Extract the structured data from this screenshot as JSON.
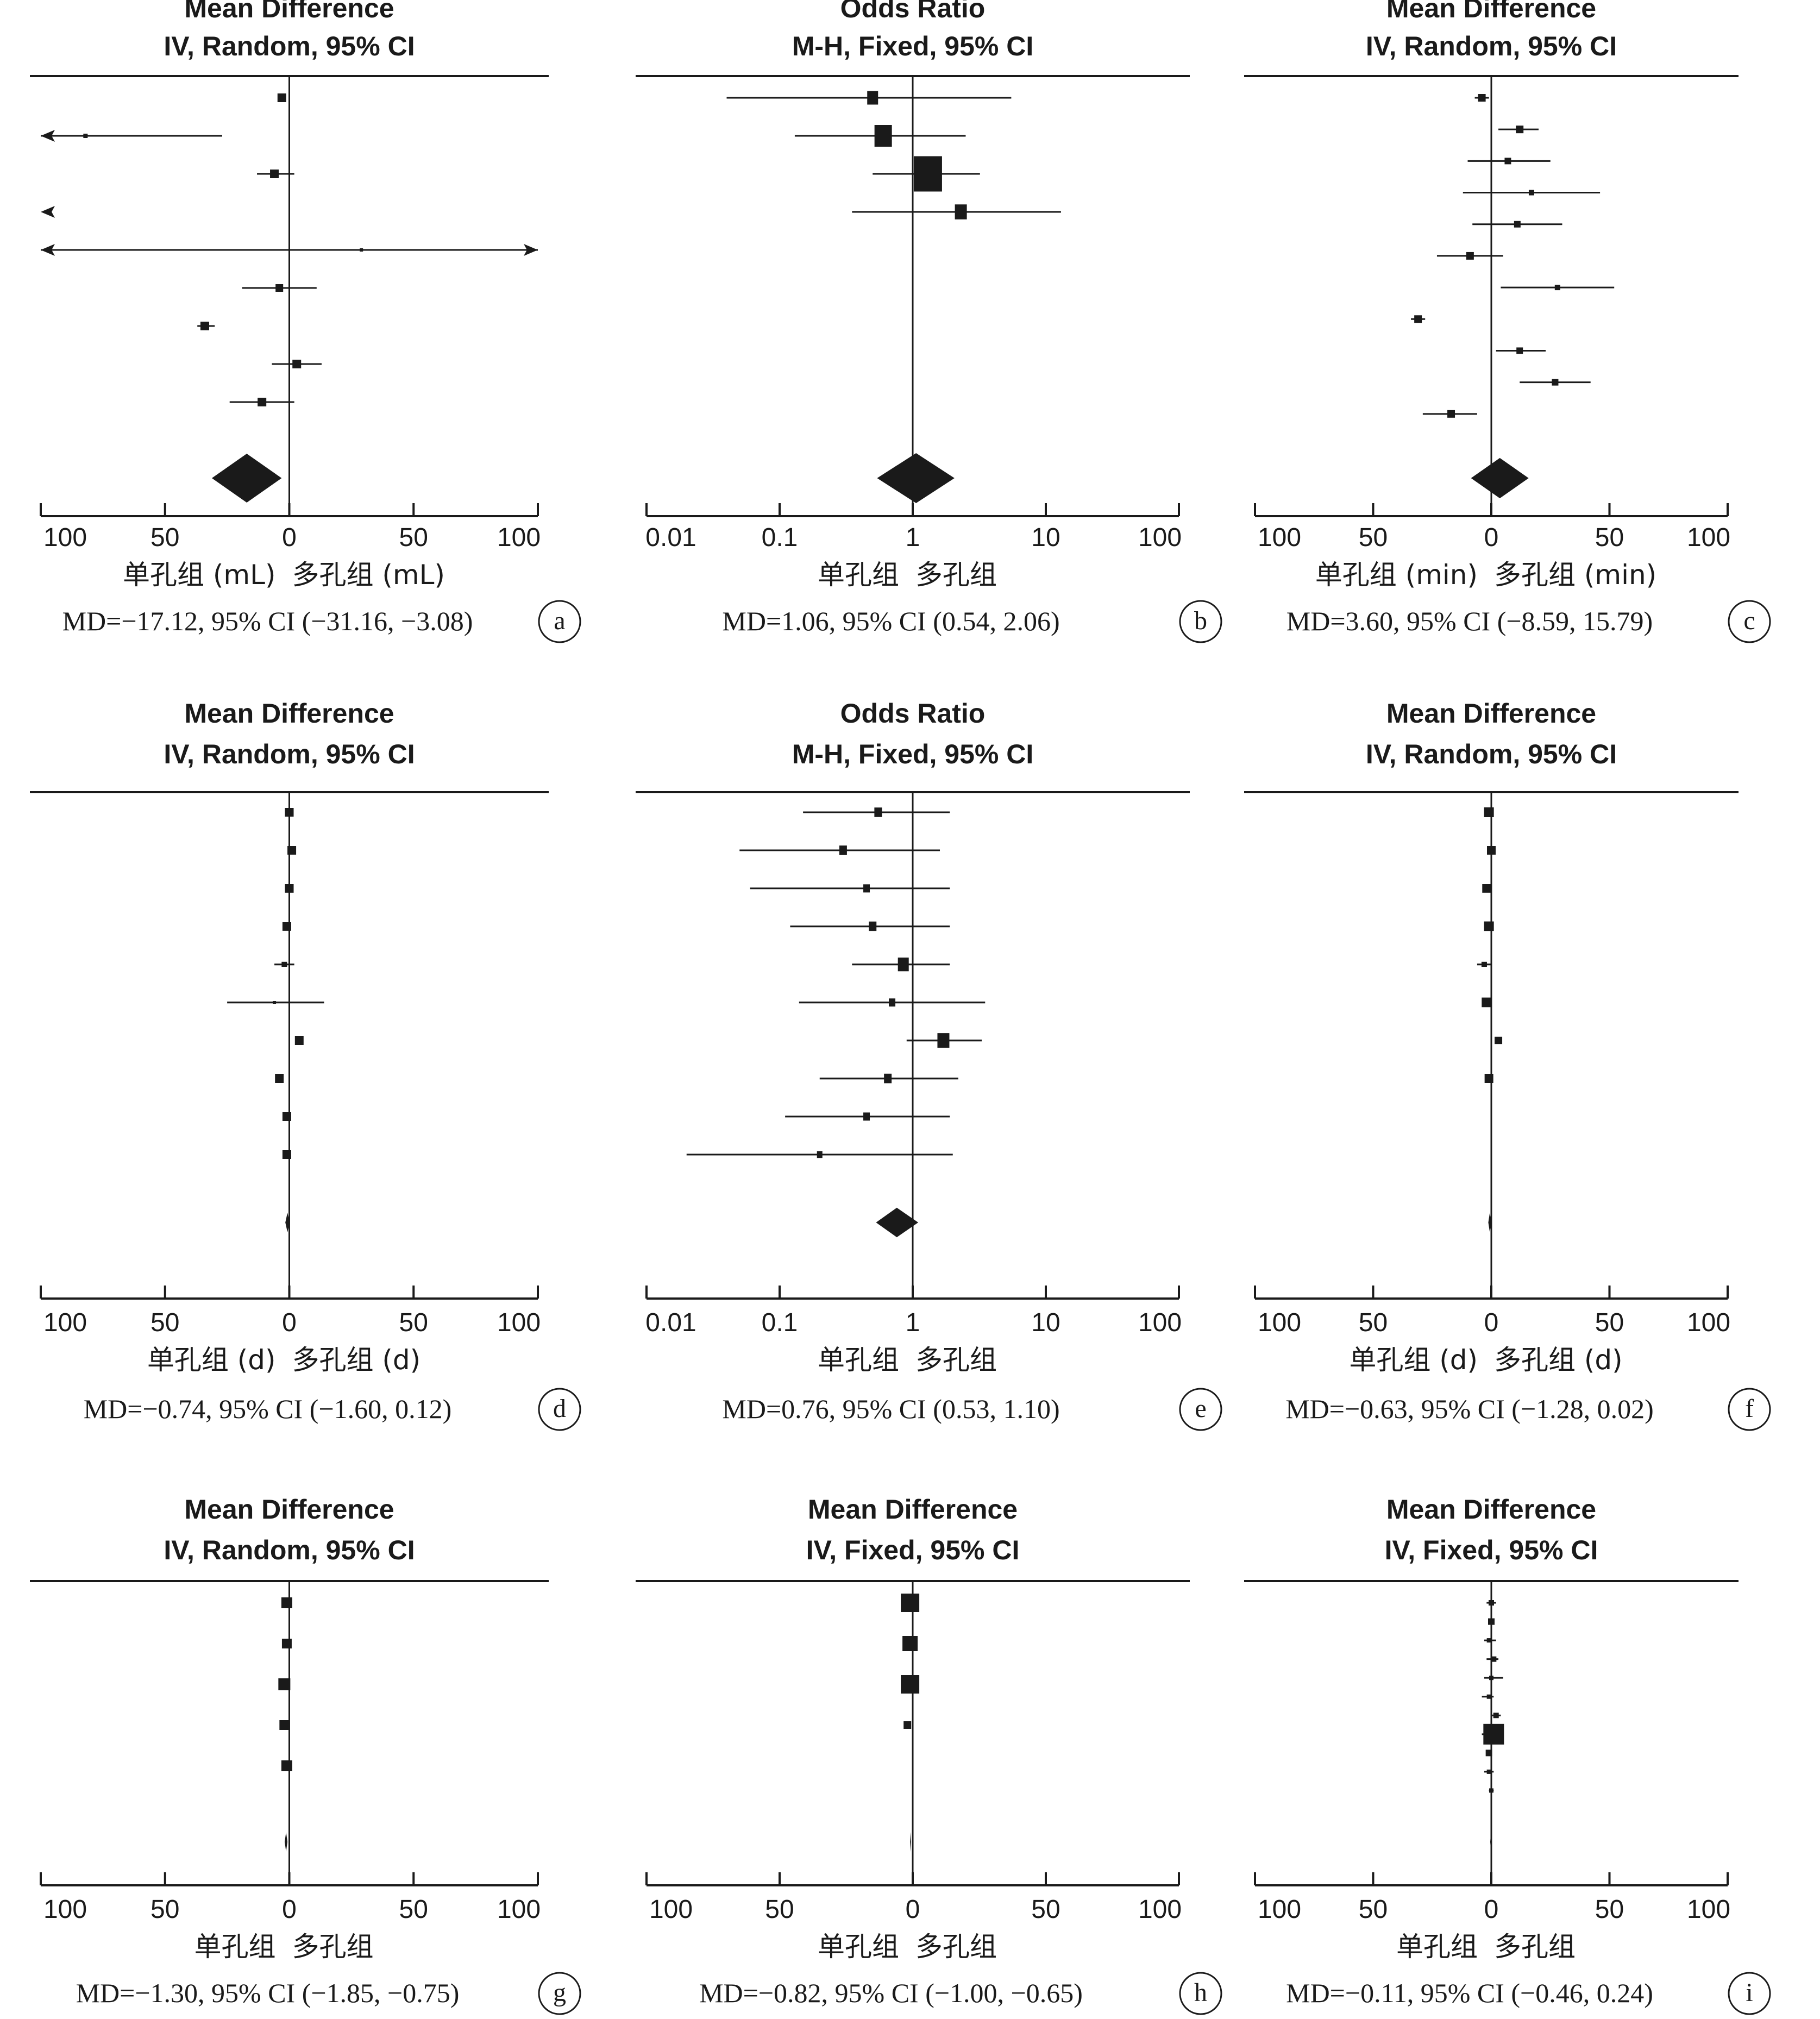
{
  "chart_data": [
    {
      "type": "forest",
      "panel_label": "a",
      "header": [
        "Mean Difference",
        "IV, Random, 95% CI"
      ],
      "scale": "linear",
      "axis_ticks": [
        "100",
        "50",
        "0",
        "50",
        "100"
      ],
      "xlim": [
        -100,
        100
      ],
      "xlabel_left": "单孔组 (mL)",
      "xlabel_right": "多孔组 (mL)",
      "summary_text": "MD=−17.12, 95% CI (−31.16, −3.08)",
      "studies": [
        {
          "est": -3,
          "lo": -3,
          "hi": -3,
          "size": 16
        },
        {
          "est": -82,
          "lo": -100,
          "hi": -27,
          "arrow_left": true,
          "size": 8
        },
        {
          "est": -6,
          "lo": -13,
          "hi": 2,
          "size": 16
        },
        {
          "est": -100,
          "lo": -100,
          "hi": -100,
          "arrow_left": true,
          "size": 0
        },
        {
          "est": 29,
          "lo": -100,
          "hi": 100,
          "arrow_left": true,
          "arrow_right": true,
          "size": 6
        },
        {
          "est": -4,
          "lo": -19,
          "hi": 11,
          "size": 14
        },
        {
          "est": -34,
          "lo": -37,
          "hi": -30,
          "size": 16
        },
        {
          "est": 3,
          "lo": -7,
          "hi": 13,
          "size": 16
        },
        {
          "est": -11,
          "lo": -24,
          "hi": 2,
          "size": 16
        }
      ],
      "pooled": {
        "est": -17.12,
        "lo": -31.16,
        "hi": -3.08
      }
    },
    {
      "type": "forest",
      "panel_label": "b",
      "header": [
        "Odds Ratio",
        "M-H, Fixed, 95% CI"
      ],
      "scale": "log",
      "axis_ticks": [
        "0.01",
        "0.1",
        "1",
        "10",
        "100"
      ],
      "xlim": [
        0.01,
        100
      ],
      "xlabel_left": "单孔组",
      "xlabel_right": "多孔组",
      "summary_text": "MD=1.06, 95% CI (0.54, 2.06)",
      "studies": [
        {
          "est": 0.5,
          "lo": 0.04,
          "hi": 5.5,
          "size": 20
        },
        {
          "est": 0.6,
          "lo": 0.13,
          "hi": 2.5,
          "size": 32
        },
        {
          "est": 1.3,
          "lo": 0.5,
          "hi": 3.2,
          "size": 52
        },
        {
          "est": 2.3,
          "lo": 0.35,
          "hi": 13,
          "size": 22
        }
      ],
      "pooled": {
        "est": 1.06,
        "lo": 0.54,
        "hi": 2.06
      }
    },
    {
      "type": "forest",
      "panel_label": "c",
      "header": [
        "Mean Difference",
        "IV, Random, 95% CI"
      ],
      "scale": "linear",
      "axis_ticks": [
        "100",
        "50",
        "0",
        "50",
        "100"
      ],
      "xlim": [
        -100,
        100
      ],
      "xlabel_left": "单孔组 (min)",
      "xlabel_right": "多孔组 (min)",
      "summary_text": "MD=3.60, 95% CI (−8.59, 15.79)",
      "studies": [
        {
          "est": -4,
          "lo": -7,
          "hi": -1,
          "size": 14
        },
        {
          "est": 12,
          "lo": 3,
          "hi": 20,
          "size": 14
        },
        {
          "est": 7,
          "lo": -10,
          "hi": 25,
          "size": 12
        },
        {
          "est": 17,
          "lo": -12,
          "hi": 46,
          "size": 10
        },
        {
          "est": 11,
          "lo": -8,
          "hi": 30,
          "size": 12
        },
        {
          "est": -9,
          "lo": -23,
          "hi": 5,
          "size": 14
        },
        {
          "est": 28,
          "lo": 4,
          "hi": 52,
          "size": 10
        },
        {
          "est": -31,
          "lo": -34,
          "hi": -28,
          "size": 14
        },
        {
          "est": 12,
          "lo": 2,
          "hi": 23,
          "size": 12
        },
        {
          "est": 27,
          "lo": 12,
          "hi": 42,
          "size": 12
        },
        {
          "est": -17,
          "lo": -29,
          "hi": -6,
          "size": 14
        }
      ],
      "pooled": {
        "est": 3.6,
        "lo": -8.59,
        "hi": 15.79
      }
    },
    {
      "type": "forest",
      "panel_label": "d",
      "header": [
        "Mean Difference",
        "IV, Random, 95% CI"
      ],
      "scale": "linear",
      "axis_ticks": [
        "100",
        "50",
        "0",
        "50",
        "100"
      ],
      "xlim": [
        -100,
        100
      ],
      "xlabel_left": "单孔组 (d)",
      "xlabel_right": "多孔组 (d)",
      "summary_text": "MD=−0.74, 95% CI (−1.60, 0.12)",
      "studies": [
        {
          "est": 0,
          "lo": -1,
          "hi": 1,
          "size": 16
        },
        {
          "est": 1,
          "lo": 0,
          "hi": 2,
          "size": 16
        },
        {
          "est": 0,
          "lo": -1,
          "hi": 1,
          "size": 16
        },
        {
          "est": -1,
          "lo": -2,
          "hi": 0,
          "size": 16
        },
        {
          "est": -2,
          "lo": -6,
          "hi": 2,
          "size": 10
        },
        {
          "est": -6,
          "lo": -25,
          "hi": 14,
          "size": 6
        },
        {
          "est": 4,
          "lo": 3,
          "hi": 5,
          "size": 16
        },
        {
          "est": -4,
          "lo": -5,
          "hi": -3,
          "size": 16
        },
        {
          "est": -1,
          "lo": -2,
          "hi": 0,
          "size": 16
        },
        {
          "est": -1,
          "lo": -2,
          "hi": 0,
          "size": 16
        }
      ],
      "pooled": {
        "est": -0.74,
        "lo": -1.6,
        "hi": 0.12
      }
    },
    {
      "type": "forest",
      "panel_label": "e",
      "header": [
        "Odds Ratio",
        "M-H, Fixed, 95% CI"
      ],
      "scale": "log",
      "axis_ticks": [
        "0.01",
        "0.1",
        "1",
        "10",
        "100"
      ],
      "xlim": [
        0.01,
        100
      ],
      "xlabel_left": "单孔组",
      "xlabel_right": "多孔组",
      "summary_text": "MD=0.76, 95% CI (0.53, 1.10)",
      "studies": [
        {
          "est": 0.55,
          "lo": 0.15,
          "hi": 1.9,
          "size": 14
        },
        {
          "est": 0.3,
          "lo": 0.05,
          "hi": 1.6,
          "size": 14
        },
        {
          "est": 0.45,
          "lo": 0.06,
          "hi": 1.9,
          "size": 12
        },
        {
          "est": 0.5,
          "lo": 0.12,
          "hi": 1.9,
          "size": 14
        },
        {
          "est": 0.85,
          "lo": 0.35,
          "hi": 1.9,
          "size": 20
        },
        {
          "est": 0.7,
          "lo": 0.14,
          "hi": 3.5,
          "size": 12
        },
        {
          "est": 1.7,
          "lo": 0.9,
          "hi": 3.3,
          "size": 22
        },
        {
          "est": 0.65,
          "lo": 0.2,
          "hi": 2.2,
          "size": 14
        },
        {
          "est": 0.45,
          "lo": 0.11,
          "hi": 1.9,
          "size": 12
        },
        {
          "est": 0.2,
          "lo": 0.02,
          "hi": 2.0,
          "size": 10
        }
      ],
      "pooled": {
        "est": 0.76,
        "lo": 0.53,
        "hi": 1.1
      }
    },
    {
      "type": "forest",
      "panel_label": "f",
      "header": [
        "Mean Difference",
        "IV, Random, 95% CI"
      ],
      "scale": "linear",
      "axis_ticks": [
        "100",
        "50",
        "0",
        "50",
        "100"
      ],
      "xlim": [
        -100,
        100
      ],
      "xlabel_left": "单孔组 (d)",
      "xlabel_right": "多孔组 (d)",
      "summary_text": "MD=−0.63, 95% CI (−1.28, 0.02)",
      "studies": [
        {
          "est": -1,
          "lo": -2,
          "hi": 0,
          "size": 18
        },
        {
          "est": 0,
          "lo": -1,
          "hi": 1,
          "size": 16
        },
        {
          "est": -2,
          "lo": -3,
          "hi": -1,
          "size": 16
        },
        {
          "est": -1,
          "lo": -2,
          "hi": 0,
          "size": 18
        },
        {
          "est": -3,
          "lo": -6,
          "hi": 0,
          "size": 10
        },
        {
          "est": -2,
          "lo": -3,
          "hi": -1,
          "size": 18
        },
        {
          "est": 3,
          "lo": 2,
          "hi": 4,
          "size": 14
        },
        {
          "est": -1,
          "lo": -2,
          "hi": 0,
          "size": 16
        }
      ],
      "pooled": {
        "est": -0.63,
        "lo": -1.28,
        "hi": 0.02
      }
    },
    {
      "type": "forest",
      "panel_label": "g",
      "header": [
        "Mean Difference",
        "IV, Random, 95% CI"
      ],
      "scale": "linear",
      "axis_ticks": [
        "100",
        "50",
        "0",
        "50",
        "100"
      ],
      "xlim": [
        -100,
        100
      ],
      "xlabel_left": "单孔组",
      "xlabel_right": "多孔组",
      "summary_text": "MD=−1.30, 95% CI (−1.85, −0.75)",
      "studies": [
        {
          "est": -1,
          "lo": -2,
          "hi": 0,
          "size": 20
        },
        {
          "est": -1,
          "lo": -2,
          "hi": 0,
          "size": 18
        },
        {
          "est": -2,
          "lo": -3,
          "hi": -1,
          "size": 22
        },
        {
          "est": -2,
          "lo": -3,
          "hi": -1,
          "size": 18
        },
        {
          "est": -1,
          "lo": -2,
          "hi": 0,
          "size": 20
        }
      ],
      "pooled": {
        "est": -1.3,
        "lo": -1.85,
        "hi": -0.75
      }
    },
    {
      "type": "forest",
      "panel_label": "h",
      "header": [
        "Mean Difference",
        "IV, Fixed, 95% CI"
      ],
      "scale": "linear",
      "axis_ticks": [
        "100",
        "50",
        "0",
        "50",
        "100"
      ],
      "xlim": [
        -100,
        100
      ],
      "xlabel_left": "单孔组",
      "xlabel_right": "多孔组",
      "summary_text": "MD=−0.82, 95% CI (−1.00, −0.65)",
      "studies": [
        {
          "est": -1,
          "lo": -2,
          "hi": 0,
          "size": 34
        },
        {
          "est": -1,
          "lo": -2,
          "hi": 0,
          "size": 28
        },
        {
          "est": -1,
          "lo": -2,
          "hi": 0,
          "size": 34
        },
        {
          "est": -2,
          "lo": -3,
          "hi": -1,
          "size": 14
        }
      ],
      "pooled": {
        "est": -0.82,
        "lo": -1.0,
        "hi": -0.65
      }
    },
    {
      "type": "forest",
      "panel_label": "i",
      "header": [
        "Mean Difference",
        "IV, Fixed, 95% CI"
      ],
      "scale": "linear",
      "axis_ticks": [
        "100",
        "50",
        "0",
        "50",
        "100"
      ],
      "xlim": [
        -100,
        100
      ],
      "xlabel_left": "单孔组",
      "xlabel_right": "多孔组",
      "summary_text": "MD=−0.11, 95% CI (−0.46, 0.24)",
      "studies": [
        {
          "est": 0,
          "lo": -2,
          "hi": 2,
          "size": 10
        },
        {
          "est": 0,
          "lo": -1,
          "hi": 1,
          "size": 12
        },
        {
          "est": -1,
          "lo": -3,
          "hi": 2,
          "size": 8
        },
        {
          "est": 1,
          "lo": -2,
          "hi": 3,
          "size": 10
        },
        {
          "est": 0,
          "lo": -3,
          "hi": 5,
          "size": 8
        },
        {
          "est": -1,
          "lo": -4,
          "hi": 1,
          "size": 8
        },
        {
          "est": 2,
          "lo": 0,
          "hi": 4,
          "size": 10
        },
        {
          "est": 1,
          "lo": -4,
          "hi": 5,
          "size": 38
        },
        {
          "est": -1,
          "lo": -2,
          "hi": 0,
          "size": 12
        },
        {
          "est": -1,
          "lo": -3,
          "hi": 1,
          "size": 8
        },
        {
          "est": 0,
          "lo": -1,
          "hi": 1,
          "size": 8
        }
      ],
      "pooled": {
        "est": -0.11,
        "lo": -0.46,
        "hi": 0.24
      }
    }
  ]
}
